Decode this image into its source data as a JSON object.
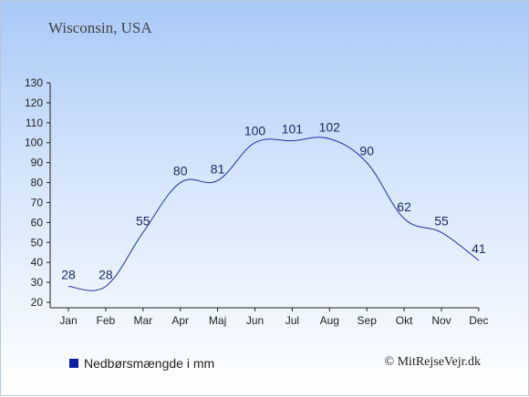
{
  "location_title": "Wisconsin, USA",
  "legend_label": "Nedbørsmængde i mm",
  "credit": "© MitRejseVejr.dk",
  "colors": {
    "line": "#1f2f9e",
    "legend_swatch": "#0b1fa6",
    "axis": "#222222"
  },
  "chart_data": {
    "type": "line",
    "categories": [
      "Jan",
      "Feb",
      "Mar",
      "Apr",
      "Maj",
      "Jun",
      "Jul",
      "Aug",
      "Sep",
      "Okt",
      "Nov",
      "Dec"
    ],
    "values": [
      28,
      28,
      55,
      80,
      81,
      100,
      101,
      102,
      90,
      62,
      55,
      41
    ],
    "data_labels": [
      "28",
      "28",
      "55",
      "80",
      "81",
      "100",
      "101",
      "102",
      "90",
      "62",
      "55",
      "41"
    ],
    "ylim": [
      20,
      130
    ],
    "yticks": [
      "20",
      "30",
      "40",
      "50",
      "60",
      "70",
      "80",
      "90",
      "100",
      "110",
      "120",
      "130"
    ],
    "grid": false,
    "legend_position": "bottom-left"
  }
}
